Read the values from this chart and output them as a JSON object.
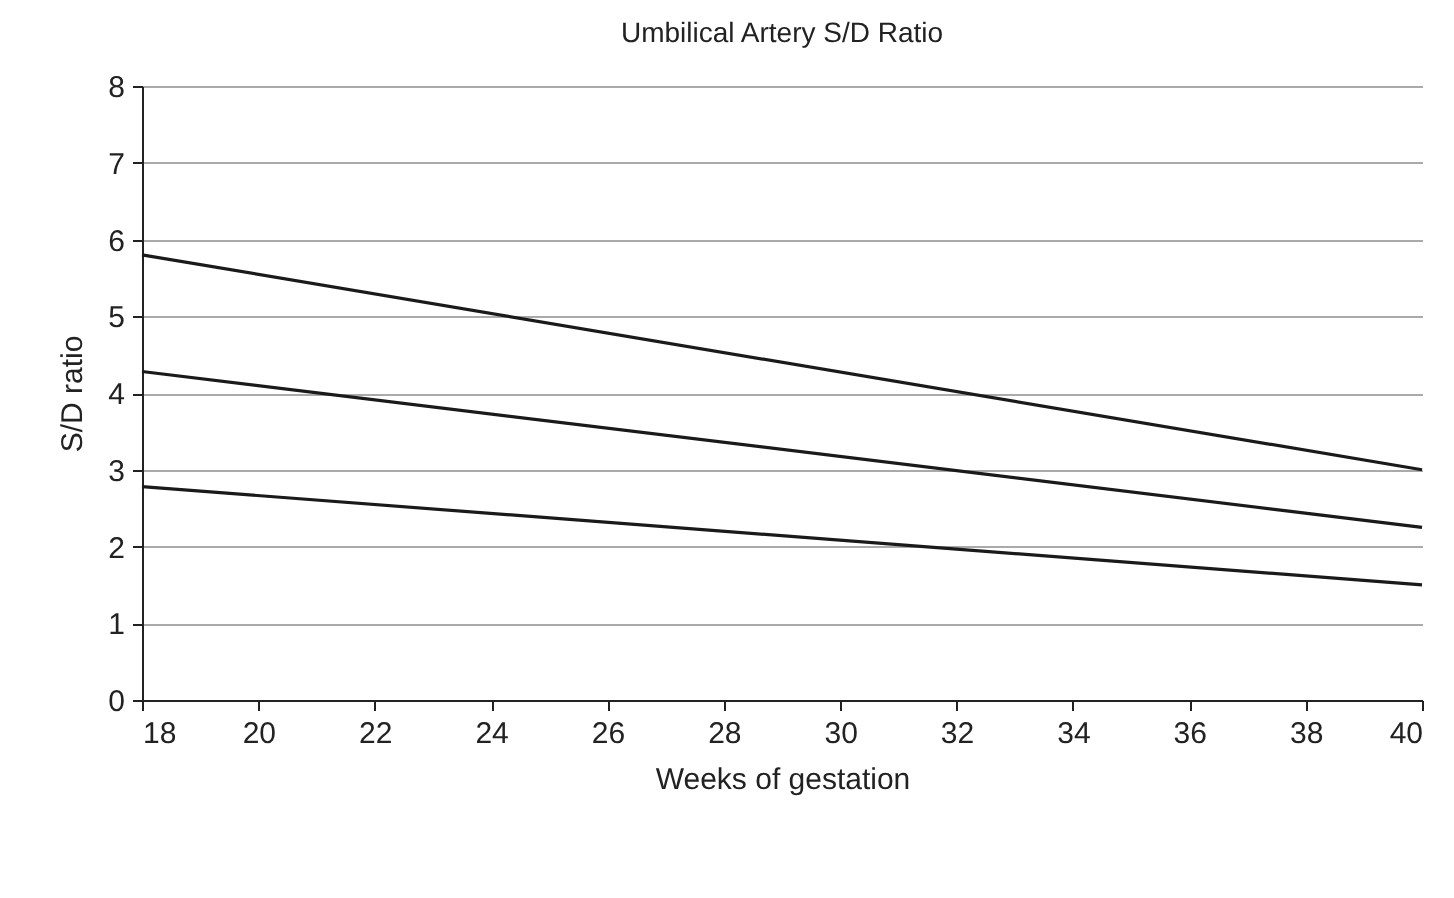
{
  "chart_data": {
    "type": "line",
    "title": "Umbilical Artery S/D Ratio",
    "xlabel": "Weeks of gestation",
    "ylabel": "S/D ratio",
    "x": [
      18,
      40
    ],
    "xlim": [
      18,
      40
    ],
    "xticks": [
      18,
      20,
      22,
      24,
      26,
      28,
      30,
      32,
      34,
      36,
      38,
      40
    ],
    "ylim": [
      0,
      8
    ],
    "yticks": [
      0,
      1,
      2,
      3,
      4,
      5,
      6,
      7,
      8
    ],
    "grid": "y",
    "marker": "none",
    "line_style": "solid",
    "series": [
      {
        "color": "#1a1a1a",
        "values": [
          5.8,
          3.0
        ]
      },
      {
        "color": "#1a1a1a",
        "values": [
          4.28,
          2.25
        ]
      },
      {
        "color": "#1a1a1a",
        "values": [
          2.78,
          1.5
        ]
      }
    ]
  }
}
